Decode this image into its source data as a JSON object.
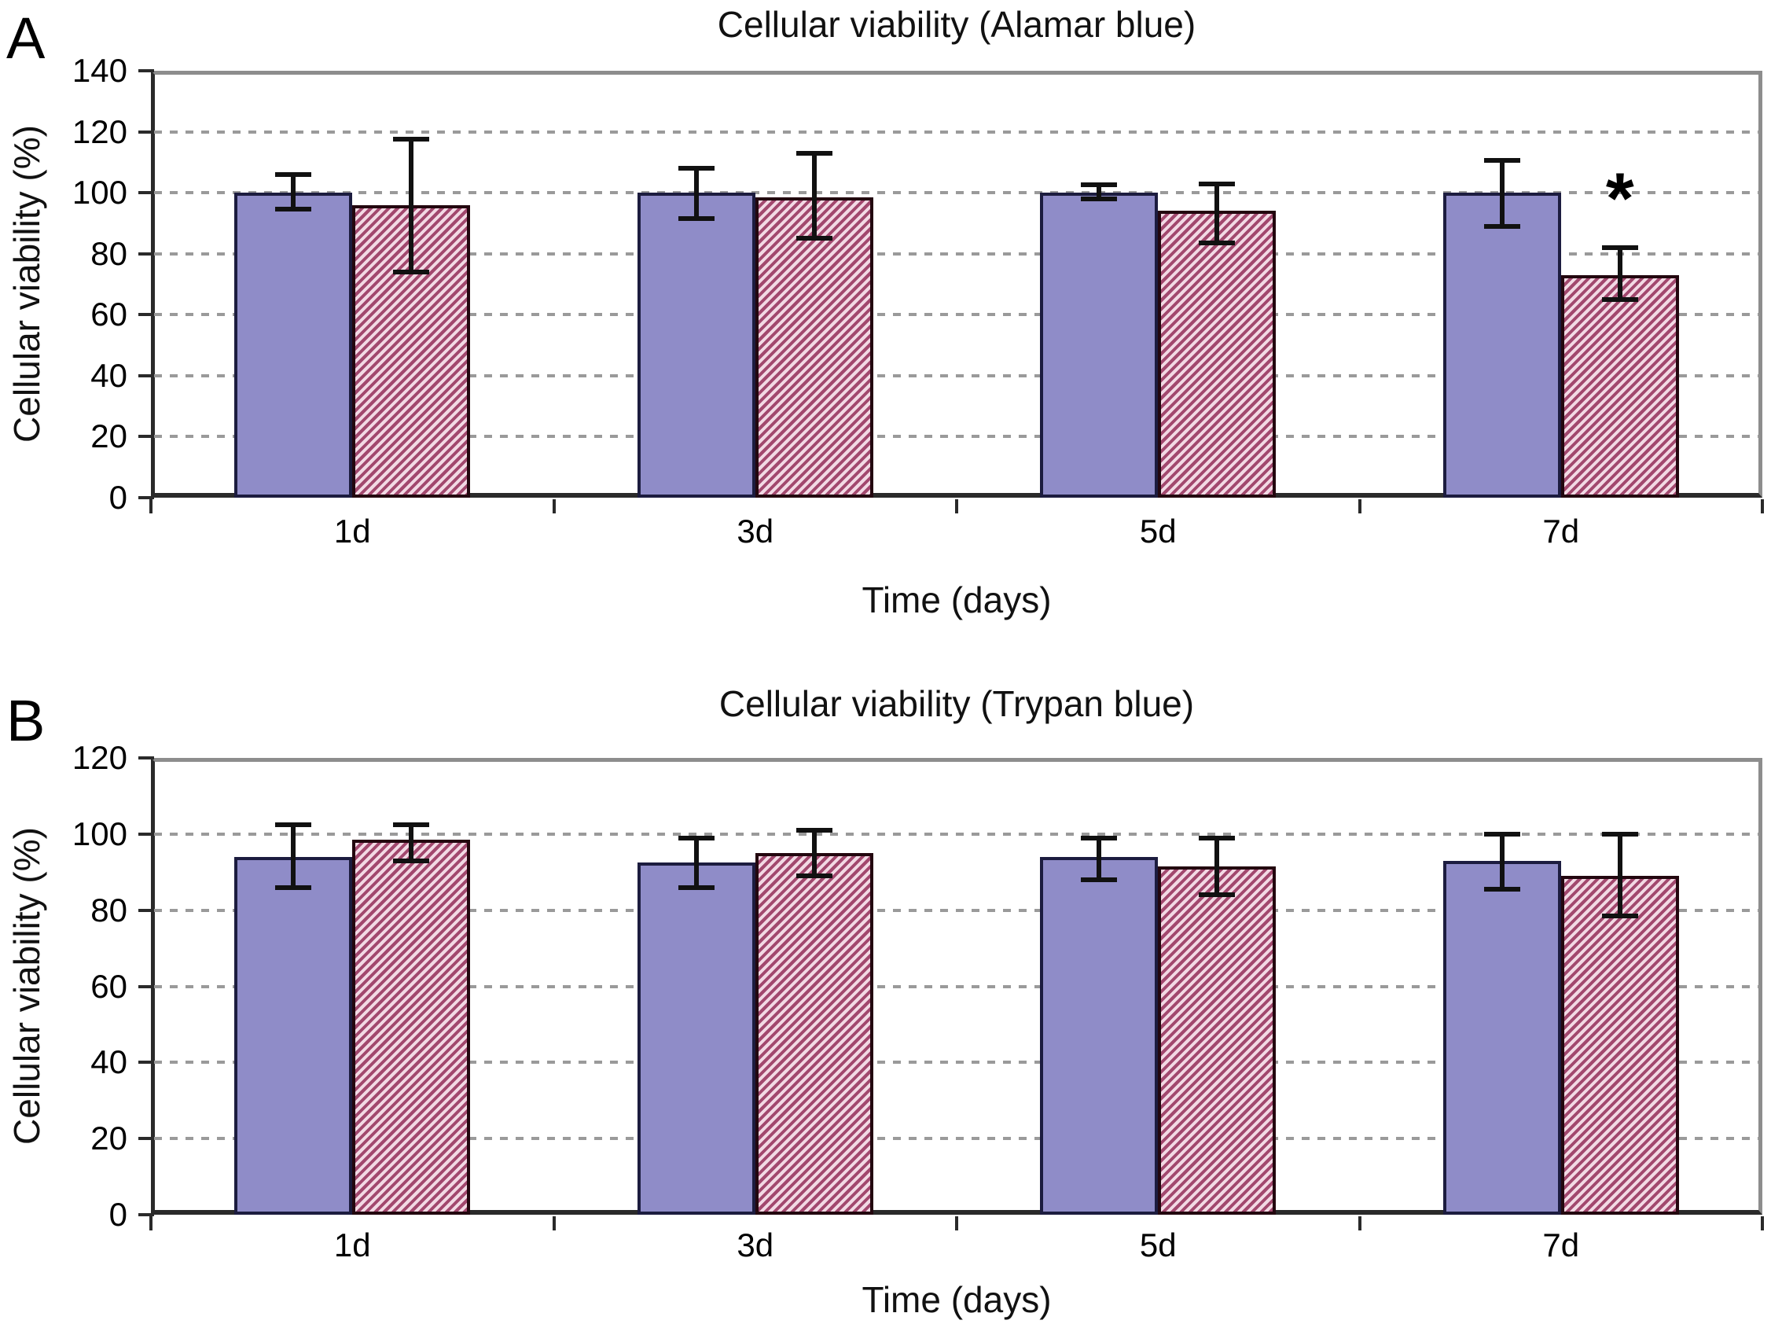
{
  "figure": {
    "panels": [
      {
        "panel_label": "A",
        "title": "Cellular viability (Alamar blue)",
        "ylabel": "Cellular viability (%)",
        "xlabel": "Time (days)",
        "chart_data": {
          "type": "bar",
          "categories": [
            "1d",
            "3d",
            "5d",
            "7d"
          ],
          "ylim": [
            0,
            140
          ],
          "ytick_step": 20,
          "yticks": [
            0,
            20,
            40,
            60,
            80,
            100,
            120,
            140
          ],
          "grid": "horizontal-dashed",
          "legend": "none",
          "series": [
            {
              "name": "solid-blue",
              "style": "solid",
              "values": [
                100,
                100,
                100,
                100
              ],
              "err_low": [
                94.5,
                91.5,
                98,
                89
              ],
              "err_high": [
                106,
                108,
                102.5,
                110.5
              ]
            },
            {
              "name": "hatched-pink",
              "style": "hatched",
              "values": [
                96,
                98.5,
                94,
                73
              ],
              "err_low": [
                74,
                85,
                83.5,
                65
              ],
              "err_high": [
                117.5,
                113,
                103,
                82
              ]
            }
          ],
          "annotations": [
            {
              "text": "*",
              "category": "7d",
              "series": "hatched-pink"
            }
          ]
        }
      },
      {
        "panel_label": "B",
        "title": "Cellular viability (Trypan blue)",
        "ylabel": "Cellular viability (%)",
        "xlabel": "Time (days)",
        "chart_data": {
          "type": "bar",
          "categories": [
            "1d",
            "3d",
            "5d",
            "7d"
          ],
          "ylim": [
            0,
            120
          ],
          "ytick_step": 20,
          "yticks": [
            0,
            20,
            40,
            60,
            80,
            100,
            120
          ],
          "grid": "horizontal-dashed",
          "legend": "none",
          "series": [
            {
              "name": "solid-blue",
              "style": "solid",
              "values": [
                94,
                92.5,
                94,
                93
              ],
              "err_low": [
                86,
                86,
                88,
                85.5
              ],
              "err_high": [
                102.5,
                99,
                99,
                100
              ]
            },
            {
              "name": "hatched-pink",
              "style": "hatched",
              "values": [
                98.5,
                95,
                91.5,
                89
              ],
              "err_low": [
                93,
                89,
                84,
                78.5
              ],
              "err_high": [
                102.5,
                101,
                99,
                100
              ]
            }
          ],
          "annotations": []
        }
      }
    ]
  },
  "colors": {
    "solid_fill": "#8f8cc8",
    "solid_border": "#1c1c3f",
    "hatch_light": "#f2d9e4",
    "hatch_dark": "#a2486e",
    "hatch_border": "#23070f",
    "error_bar": "#111111",
    "grid": "#9a9a9a",
    "frame_gray": "#8d8d8d",
    "axis_dark": "#2a2a2a",
    "text": "#000000"
  }
}
